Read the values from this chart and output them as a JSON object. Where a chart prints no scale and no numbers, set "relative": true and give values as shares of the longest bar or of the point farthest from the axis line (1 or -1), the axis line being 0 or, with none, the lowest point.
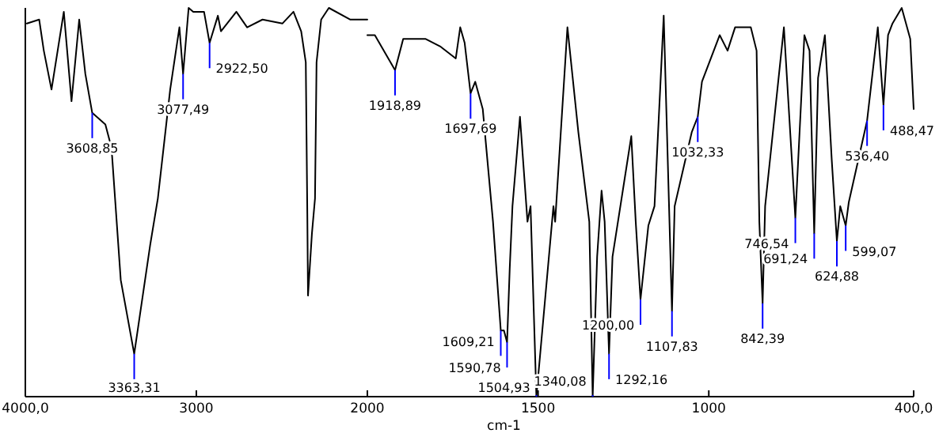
{
  "chart_data": [
    {
      "type": "line",
      "relative": true,
      "xlim": [
        4000,
        2000
      ],
      "xticks": [
        {
          "value": 4000,
          "label": "4000,0"
        },
        3000,
        {
          "value": 2000,
          "label": null
        }
      ],
      "series": [
        {
          "color": "#000000",
          "x": [
            3991,
            3919,
            3892,
            3847,
            3811,
            3775,
            3730,
            3685,
            3649,
            3608.85,
            3532,
            3496,
            3469,
            3442,
            3363.31,
            3270,
            3225,
            3153,
            3099,
            3077.49,
            3045,
            3018,
            2955,
            2922.5,
            2874,
            2856,
            2766,
            2703,
            2613,
            2496,
            2432,
            2387,
            2360,
            2351,
            2347,
            2324,
            2306,
            2297,
            2270,
            2225,
            2099,
            2000
          ],
          "values": [
            0.96,
            0.97,
            0.89,
            0.79,
            0.89,
            0.99,
            0.76,
            0.97,
            0.83,
            0.73,
            0.7,
            0.64,
            0.47,
            0.3,
            0.11,
            0.39,
            0.51,
            0.79,
            0.95,
            0.83,
            1.0,
            0.99,
            0.99,
            0.91,
            0.98,
            0.94,
            0.99,
            0.95,
            0.97,
            0.96,
            0.99,
            0.94,
            0.86,
            0.47,
            0.26,
            0.42,
            0.51,
            0.86,
            0.97,
            1.0,
            0.97,
            0.97
          ]
        }
      ],
      "annotations": [
        {
          "text": "3608,85",
          "x": 3608.85,
          "y": 0.73
        },
        {
          "text": "3363,31",
          "x": 3363.31,
          "y": 0.11
        },
        {
          "text": "3077,49",
          "x": 3077.49,
          "y": 0.83
        },
        {
          "text": "2922,50",
          "x": 2922.5,
          "y": 0.91
        }
      ]
    },
    {
      "type": "line",
      "relative": true,
      "xlabel": "cm-1",
      "xlim": [
        2000,
        400
      ],
      "xticks": [
        2000,
        1500,
        1000,
        {
          "value": 400,
          "label": "400,0"
        }
      ],
      "series": [
        {
          "color": "#000000",
          "x": [
            2000,
            1978,
            1918.89,
            1895,
            1829,
            1785,
            1741,
            1728,
            1715,
            1697.69,
            1684,
            1662,
            1632,
            1609.21,
            1600,
            1590.78,
            1583,
            1575,
            1553,
            1531,
            1522,
            1504.93,
            1455,
            1450,
            1414,
            1382,
            1350,
            1340.08,
            1327,
            1314,
            1305,
            1292.16,
            1282,
            1227,
            1214,
            1200,
            1177,
            1159,
            1132,
            1107.83,
            1100,
            1050,
            1032.33,
            1020,
            968,
            945,
            923,
            877,
            860,
            852,
            842.39,
            835,
            780,
            746.54,
            720,
            705,
            691.24,
            680,
            660,
            640,
            624.88,
            615,
            599.07,
            590,
            536.4,
            505,
            488.47,
            475,
            462,
            435,
            410,
            400
          ],
          "values": [
            0.93,
            0.93,
            0.84,
            0.92,
            0.92,
            0.9,
            0.87,
            0.95,
            0.91,
            0.78,
            0.81,
            0.74,
            0.45,
            0.17,
            0.17,
            0.14,
            0.33,
            0.49,
            0.72,
            0.45,
            0.49,
            0.0,
            0.49,
            0.45,
            0.95,
            0.68,
            0.45,
            0.0,
            0.36,
            0.53,
            0.45,
            0.11,
            0.36,
            0.67,
            0.45,
            0.25,
            0.44,
            0.49,
            0.98,
            0.22,
            0.49,
            0.68,
            0.72,
            0.81,
            0.93,
            0.89,
            0.95,
            0.95,
            0.89,
            0.45,
            0.24,
            0.49,
            0.95,
            0.46,
            0.93,
            0.89,
            0.42,
            0.82,
            0.93,
            0.61,
            0.4,
            0.49,
            0.44,
            0.5,
            0.71,
            0.95,
            0.75,
            0.93,
            0.96,
            1.0,
            0.92,
            0.74
          ]
        }
      ],
      "annotations": [
        {
          "text": "1918,89",
          "x": 1918.89,
          "y": 0.84
        },
        {
          "text": "1697,69",
          "x": 1697.69,
          "y": 0.78
        },
        {
          "text": "1609,21",
          "x": 1609.21,
          "y": 0.17
        },
        {
          "text": "1590,78",
          "x": 1590.78,
          "y": 0.14
        },
        {
          "text": "1504,93",
          "x": 1504.93,
          "y": 0.0
        },
        {
          "text": "1340,08",
          "x": 1340.08,
          "y": 0.0
        },
        {
          "text": "1292,16",
          "x": 1292.16,
          "y": 0.11
        },
        {
          "text": "1200,00",
          "x": 1200,
          "y": 0.25
        },
        {
          "text": "1107,83",
          "x": 1107.83,
          "y": 0.22
        },
        {
          "text": "1032,33",
          "x": 1032.33,
          "y": 0.72
        },
        {
          "text": "842,39",
          "x": 842.39,
          "y": 0.24
        },
        {
          "text": "746,54",
          "x": 746.54,
          "y": 0.46
        },
        {
          "text": "691,24",
          "x": 691.24,
          "y": 0.42
        },
        {
          "text": "624,88",
          "x": 624.88,
          "y": 0.4
        },
        {
          "text": "599,07",
          "x": 599.07,
          "y": 0.44
        },
        {
          "text": "536,40",
          "x": 536.4,
          "y": 0.71
        },
        {
          "text": "488,47",
          "x": 488.47,
          "y": 0.75
        }
      ]
    }
  ]
}
